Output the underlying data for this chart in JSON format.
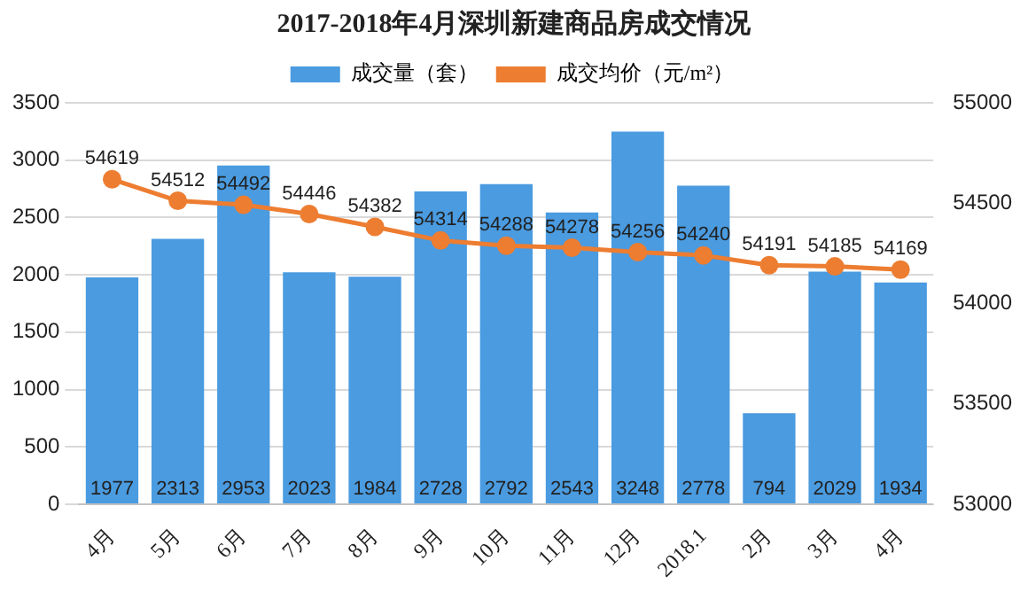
{
  "chart_data": {
    "type": "bar",
    "title": "2017-2018年4月深圳新建商品房成交情况",
    "categories": [
      "4月",
      "5月",
      "6月",
      "7月",
      "8月",
      "9月",
      "10月",
      "11月",
      "12月",
      "2018.1",
      "2月",
      "3月",
      "4月"
    ],
    "series": [
      {
        "name": "成交量（套）",
        "color": "#4a9be0",
        "values": [
          1977,
          2313,
          2953,
          2023,
          1984,
          2728,
          2792,
          2543,
          3248,
          2778,
          794,
          2029,
          1934
        ]
      },
      {
        "name": "成交均价（元/m²）",
        "type": "line",
        "axis": "y2",
        "color": "#ed7d31",
        "values": [
          54619,
          54512,
          54492,
          54446,
          54382,
          54314,
          54288,
          54278,
          54256,
          54240,
          54191,
          54185,
          54169
        ]
      }
    ],
    "ylim": [
      0,
      3500
    ],
    "yticks": [
      0,
      500,
      1000,
      1500,
      2000,
      2500,
      3000,
      3500
    ],
    "y2lim": [
      53000,
      55000
    ],
    "y2ticks": [
      53000,
      53500,
      54000,
      54500,
      55000
    ],
    "grid": "y",
    "legend": "top",
    "marker": "circle",
    "line_style": "solid",
    "data_labels": true
  }
}
